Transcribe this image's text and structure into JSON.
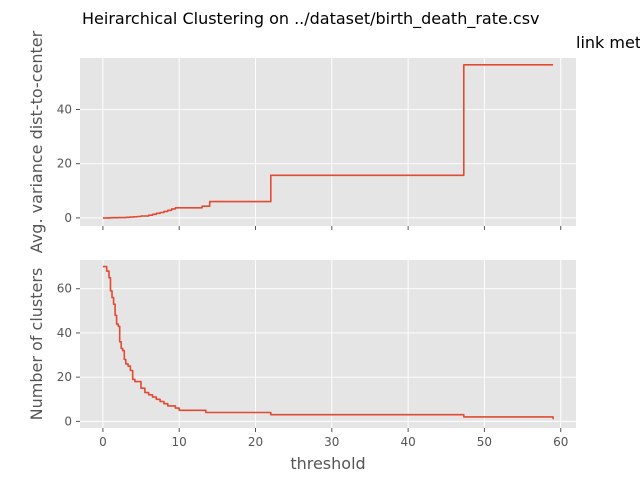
{
  "title_line1": "Heirarchical Clustering on ../dataset/birth_death_rate.csv",
  "title_line2": "link met",
  "colors": {
    "plot_bg": "#e5e5e5",
    "grid": "#ffffff",
    "series": "#e24a33",
    "text": "#555555"
  },
  "chart_data": [
    {
      "type": "line",
      "title": "",
      "xlabel": "",
      "ylabel": "Avg. variance dist-to-center",
      "xlim": [
        -3,
        62
      ],
      "ylim": [
        -3,
        59
      ],
      "xticks": [
        0,
        10,
        20,
        30,
        40,
        50,
        60
      ],
      "xtick_labels_visible": false,
      "yticks": [
        0,
        20,
        40
      ],
      "grid": true,
      "step": "post",
      "series": [
        {
          "name": "",
          "x": [
            0,
            1,
            2,
            3,
            3.5,
            4,
            4.5,
            5,
            6,
            6.5,
            7,
            7.5,
            8,
            8.5,
            9,
            9.5,
            12,
            13,
            14,
            22,
            47.3,
            59
          ],
          "y": [
            0,
            0.05,
            0.1,
            0.2,
            0.3,
            0.4,
            0.5,
            0.7,
            1.0,
            1.3,
            1.7,
            2.0,
            2.4,
            2.8,
            3.3,
            3.7,
            3.7,
            4.3,
            6.0,
            15.7,
            56.5,
            56.5
          ]
        }
      ]
    },
    {
      "type": "line",
      "title": "",
      "xlabel": "threshold",
      "ylabel": "Number of clusters",
      "xlim": [
        -3,
        62
      ],
      "ylim": [
        -3,
        73
      ],
      "xticks": [
        0,
        10,
        20,
        30,
        40,
        50,
        60
      ],
      "yticks": [
        0,
        20,
        40,
        60
      ],
      "grid": true,
      "step": "post",
      "series": [
        {
          "name": "",
          "x": [
            0,
            0.5,
            0.8,
            1.0,
            1.2,
            1.4,
            1.6,
            1.8,
            2.0,
            2.2,
            2.4,
            2.6,
            2.8,
            3.0,
            3.3,
            3.6,
            3.9,
            4.2,
            4.5,
            5.0,
            5.5,
            6.0,
            6.5,
            7.0,
            7.5,
            8.0,
            8.5,
            9.0,
            9.5,
            10.0,
            12.0,
            13.5,
            22.0,
            47.3,
            59
          ],
          "y": [
            70,
            68,
            65,
            59,
            56,
            53,
            48,
            44,
            43,
            36,
            33,
            32,
            28,
            26,
            25,
            23,
            19,
            18,
            18,
            15,
            13,
            12,
            11,
            10,
            9,
            8,
            7,
            7,
            6,
            5,
            5,
            4,
            3,
            2,
            1
          ]
        }
      ]
    }
  ]
}
